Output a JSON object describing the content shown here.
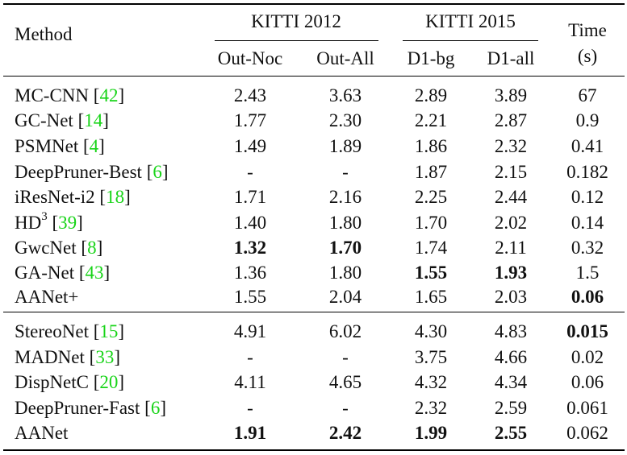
{
  "header": {
    "method": "Method",
    "group_kitti2012": "KITTI 2012",
    "group_kitti2015": "KITTI 2015",
    "time_line1": "Time",
    "time_line2": "(s)",
    "cols": [
      "Out-Noc",
      "Out-All",
      "D1-bg",
      "D1-all"
    ]
  },
  "rows": [
    {
      "name": "MC-CNN",
      "cite": "42",
      "v": [
        "2.43",
        "3.63",
        "2.89",
        "3.89",
        "67"
      ],
      "bold": []
    },
    {
      "name": "GC-Net",
      "cite": "14",
      "v": [
        "1.77",
        "2.30",
        "2.21",
        "2.87",
        "0.9"
      ],
      "bold": []
    },
    {
      "name": "PSMNet",
      "cite": "4",
      "v": [
        "1.49",
        "1.89",
        "1.86",
        "2.32",
        "0.41"
      ],
      "bold": []
    },
    {
      "name": "DeepPruner-Best",
      "cite": "6",
      "v": [
        "-",
        "-",
        "1.87",
        "2.15",
        "0.182"
      ],
      "bold": []
    },
    {
      "name": "iResNet-i2",
      "cite": "18",
      "v": [
        "1.71",
        "2.16",
        "2.25",
        "2.44",
        "0.12"
      ],
      "bold": []
    },
    {
      "name": "HD",
      "sup": "3",
      "cite": "39",
      "v": [
        "1.40",
        "1.80",
        "1.70",
        "2.02",
        "0.14"
      ],
      "bold": []
    },
    {
      "name": "GwcNet",
      "cite": "8",
      "v": [
        "1.32",
        "1.70",
        "1.74",
        "2.11",
        "0.32"
      ],
      "bold": [
        0,
        1
      ]
    },
    {
      "name": "GA-Net",
      "cite": "43",
      "v": [
        "1.36",
        "1.80",
        "1.55",
        "1.93",
        "1.5"
      ],
      "bold": [
        2,
        3
      ]
    },
    {
      "name": "AANet+",
      "v": [
        "1.55",
        "2.04",
        "1.65",
        "2.03",
        "0.06"
      ],
      "bold": [
        4
      ]
    },
    {
      "name": "StereoNet",
      "cite": "15",
      "v": [
        "4.91",
        "6.02",
        "4.30",
        "4.83",
        "0.015"
      ],
      "bold": [
        4
      ]
    },
    {
      "name": "MADNet",
      "cite": "33",
      "v": [
        "-",
        "-",
        "3.75",
        "4.66",
        "0.02"
      ],
      "bold": []
    },
    {
      "name": "DispNetC",
      "cite": "20",
      "v": [
        "4.11",
        "4.65",
        "4.32",
        "4.34",
        "0.06"
      ],
      "bold": []
    },
    {
      "name": "DeepPruner-Fast",
      "cite": "6",
      "v": [
        "-",
        "-",
        "2.32",
        "2.59",
        "0.061"
      ],
      "bold": []
    },
    {
      "name": "AANet",
      "v": [
        "1.91",
        "2.42",
        "1.99",
        "2.55",
        "0.062"
      ],
      "bold": [
        0,
        1,
        2,
        3
      ]
    }
  ]
}
